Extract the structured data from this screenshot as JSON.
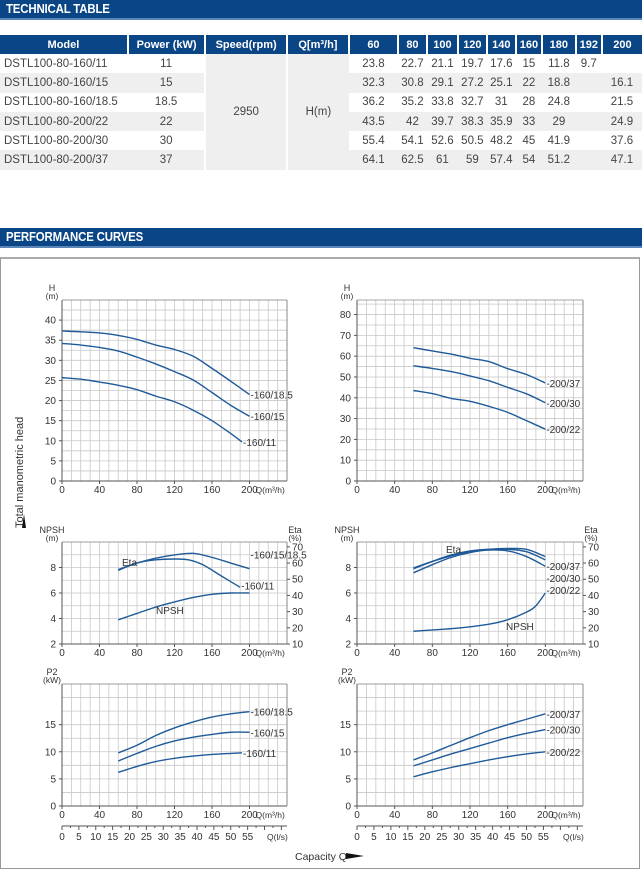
{
  "sections": {
    "technical_table": "TECHNICAL TABLE",
    "performance_curves": "PERFORMANCE CURVES"
  },
  "table": {
    "headers": [
      "Model",
      "Power (kW)",
      "Speed(rpm)",
      "Q[m³/h]"
    ],
    "flow_points": [
      "60",
      "80",
      "100",
      "120",
      "140",
      "160",
      "180",
      "192",
      "200"
    ],
    "speed": "2950",
    "head_label": "H(m)",
    "rows": [
      {
        "model": "DSTL100-80-160/11",
        "power": "11",
        "values": [
          "23.8",
          "22.7",
          "21.1",
          "19.7",
          "17.6",
          "15",
          "11.8",
          "9.7",
          ""
        ]
      },
      {
        "model": "DSTL100-80-160/15",
        "power": "15",
        "values": [
          "32.3",
          "30.8",
          "29.1",
          "27.2",
          "25.1",
          "22",
          "18.8",
          "",
          "16.1"
        ]
      },
      {
        "model": "DSTL100-80-160/18.5",
        "power": "18.5",
        "values": [
          "36.2",
          "35.2",
          "33.8",
          "32.7",
          "31",
          "28",
          "24.8",
          "",
          "21.5"
        ]
      },
      {
        "model": "DSTL100-80-200/22",
        "power": "22",
        "values": [
          "43.5",
          "42",
          "39.7",
          "38.3",
          "35.9",
          "33",
          "29",
          "",
          "24.9"
        ]
      },
      {
        "model": "DSTL100-80-200/30",
        "power": "30",
        "values": [
          "55.4",
          "54.1",
          "52.6",
          "50.5",
          "48.2",
          "45",
          "41.9",
          "",
          "37.6"
        ]
      },
      {
        "model": "DSTL100-80-200/37",
        "power": "37",
        "values": [
          "64.1",
          "62.5",
          "61",
          "59",
          "57.4",
          "54",
          "51.2",
          "",
          "47.1"
        ]
      }
    ]
  },
  "labels": {
    "y_axis_global": "Total manometric head",
    "x_axis_global": "Capacity Q"
  },
  "colors": {
    "brand": "#0a4585",
    "curve": "#1f5a99",
    "grid": "#c8c8c8"
  },
  "chart_data": [
    {
      "id": "head-160",
      "type": "line",
      "title": "",
      "ylabel_top": "H",
      "ylabel_unit": "(m)",
      "xlabel": "Q(m³/h)",
      "xlim": [
        0,
        240
      ],
      "ylim": [
        0,
        45
      ],
      "xticks": [
        0,
        40,
        80,
        120,
        160,
        200
      ],
      "yticks": [
        0,
        5,
        10,
        15,
        20,
        25,
        30,
        35,
        40
      ],
      "grid": true,
      "series": [
        {
          "name": "-160/18.5",
          "x": [
            0,
            20,
            40,
            60,
            80,
            100,
            120,
            140,
            160,
            180,
            200
          ],
          "y": [
            37.3,
            37.1,
            36.8,
            36.2,
            35.2,
            33.8,
            32.7,
            31,
            28,
            24.8,
            21.5
          ]
        },
        {
          "name": "-160/15",
          "x": [
            0,
            20,
            40,
            60,
            80,
            100,
            120,
            140,
            160,
            180,
            200
          ],
          "y": [
            34.2,
            33.8,
            33.2,
            32.3,
            30.8,
            29.1,
            27.2,
            25.1,
            22,
            18.8,
            16.1
          ]
        },
        {
          "name": "-160/11",
          "x": [
            0,
            20,
            40,
            60,
            80,
            100,
            120,
            140,
            160,
            180,
            192
          ],
          "y": [
            25.7,
            25.3,
            24.6,
            23.8,
            22.7,
            21.1,
            19.7,
            17.6,
            15,
            11.8,
            9.7
          ]
        }
      ]
    },
    {
      "id": "head-200",
      "type": "line",
      "title": "",
      "ylabel_top": "H",
      "ylabel_unit": "(m)",
      "xlabel": "Q(m³/h)",
      "xlim": [
        0,
        240
      ],
      "ylim": [
        0,
        87
      ],
      "xticks": [
        0,
        40,
        80,
        120,
        160,
        200
      ],
      "yticks": [
        0,
        10,
        20,
        30,
        40,
        50,
        60,
        70,
        80
      ],
      "grid": true,
      "series": [
        {
          "name": "-200/37",
          "x": [
            60,
            80,
            100,
            120,
            140,
            160,
            180,
            200
          ],
          "y": [
            64.1,
            62.5,
            61,
            59,
            57.4,
            54,
            51.2,
            47.1
          ]
        },
        {
          "name": "-200/30",
          "x": [
            60,
            80,
            100,
            120,
            140,
            160,
            180,
            200
          ],
          "y": [
            55.4,
            54.1,
            52.6,
            50.5,
            48.2,
            45,
            41.9,
            37.6
          ]
        },
        {
          "name": "-200/22",
          "x": [
            60,
            80,
            100,
            120,
            140,
            160,
            180,
            200
          ],
          "y": [
            43.5,
            42,
            39.7,
            38.3,
            35.9,
            33,
            29,
            24.9
          ]
        }
      ]
    },
    {
      "id": "npsh-eta-160",
      "type": "line",
      "title": "",
      "ylabel_top": "NPSH",
      "ylabel_unit": "(m)",
      "y2label_top": "Eta",
      "y2label_unit": "(%)",
      "xlabel": "Q(m³/h)",
      "xlim": [
        0,
        240
      ],
      "ylim": [
        2,
        10
      ],
      "y2lim": [
        10,
        73
      ],
      "xticks": [
        0,
        40,
        80,
        120,
        160,
        200
      ],
      "yticks": [
        2,
        4,
        6,
        8
      ],
      "y2ticks": [
        10,
        20,
        30,
        40,
        50,
        60,
        70
      ],
      "grid": true,
      "annotations": [
        "Eta",
        "NPSH"
      ],
      "series": [
        {
          "name": "-160/15/18.5",
          "axis": "y2",
          "x": [
            60,
            80,
            100,
            120,
            140,
            160,
            180,
            200
          ],
          "y": [
            56,
            60,
            63,
            65,
            66,
            63.5,
            60,
            56.5
          ]
        },
        {
          "name": "-160/11",
          "axis": "y2",
          "x": [
            60,
            80,
            100,
            120,
            135,
            150,
            170,
            190
          ],
          "y": [
            55.5,
            60,
            62,
            62.5,
            62,
            59,
            52,
            45
          ]
        },
        {
          "name": "NPSH",
          "axis": "y",
          "x": [
            60,
            80,
            100,
            120,
            140,
            160,
            180,
            200
          ],
          "y": [
            3.9,
            4.4,
            4.9,
            5.3,
            5.65,
            5.9,
            6.0,
            6.0
          ]
        }
      ]
    },
    {
      "id": "npsh-eta-200",
      "type": "line",
      "title": "",
      "ylabel_top": "NPSH",
      "ylabel_unit": "(m)",
      "y2label_top": "Eta",
      "y2label_unit": "(%)",
      "xlabel": "Q(m³/h)",
      "xlim": [
        0,
        240
      ],
      "ylim": [
        2,
        10
      ],
      "y2lim": [
        10,
        73
      ],
      "xticks": [
        0,
        40,
        80,
        120,
        160,
        200
      ],
      "yticks": [
        2,
        4,
        6,
        8
      ],
      "y2ticks": [
        10,
        20,
        30,
        40,
        50,
        60,
        70
      ],
      "grid": true,
      "annotations": [
        "Eta",
        "NPSH"
      ],
      "series": [
        {
          "name": "-200/37",
          "axis": "y2",
          "x": [
            60,
            80,
            100,
            120,
            140,
            160,
            180,
            200
          ],
          "y": [
            57,
            61,
            64.5,
            67,
            68.5,
            69,
            68.5,
            64
          ]
        },
        {
          "name": "-200/30",
          "axis": "y2",
          "x": [
            60,
            80,
            100,
            120,
            140,
            160,
            180,
            200
          ],
          "y": [
            56.5,
            61,
            65,
            67.5,
            68.5,
            68.5,
            67,
            62
          ]
        },
        {
          "name": "-200/22",
          "axis": "y2",
          "x": [
            60,
            80,
            100,
            120,
            140,
            160,
            180,
            200
          ],
          "y": [
            54,
            59,
            63.5,
            66.5,
            68,
            67.5,
            64,
            58
          ]
        },
        {
          "name": "NPSH",
          "axis": "y",
          "x": [
            60,
            80,
            100,
            120,
            140,
            160,
            180,
            190,
            200
          ],
          "y": [
            3.0,
            3.1,
            3.2,
            3.35,
            3.55,
            3.9,
            4.5,
            5.0,
            6.0
          ]
        }
      ]
    },
    {
      "id": "power-160",
      "type": "line",
      "title": "",
      "ylabel_top": "P2",
      "ylabel_unit": "(kW)",
      "xlabel": "Q(m³/h)",
      "x2label": "Q(l/s)",
      "xlim": [
        0,
        240
      ],
      "ylim": [
        0,
        22.5
      ],
      "xticks": [
        0,
        40,
        80,
        120,
        160,
        200
      ],
      "yticks": [
        0,
        5,
        10,
        15
      ],
      "x2ticks": [
        0,
        5,
        10,
        15,
        20,
        25,
        30,
        35,
        40,
        45,
        50,
        55
      ],
      "grid": true,
      "series": [
        {
          "name": "-160/18.5",
          "x": [
            60,
            80,
            100,
            120,
            140,
            160,
            180,
            200
          ],
          "y": [
            9.8,
            11.2,
            13,
            14.4,
            15.5,
            16.4,
            17.0,
            17.4
          ]
        },
        {
          "name": "-160/15",
          "x": [
            60,
            80,
            100,
            120,
            140,
            160,
            180,
            200
          ],
          "y": [
            8.3,
            9.7,
            11,
            12,
            12.7,
            13.2,
            13.6,
            13.6
          ]
        },
        {
          "name": "-160/11",
          "x": [
            60,
            80,
            100,
            120,
            140,
            160,
            180,
            192
          ],
          "y": [
            6.2,
            7.3,
            8.2,
            8.8,
            9.2,
            9.5,
            9.7,
            9.8
          ]
        }
      ]
    },
    {
      "id": "power-200",
      "type": "line",
      "title": "",
      "ylabel_top": "P2",
      "ylabel_unit": "(kW)",
      "xlabel": "Q(m³/h)",
      "x2label": "Q(l/s)",
      "xlim": [
        0,
        240
      ],
      "ylim": [
        0,
        22.5
      ],
      "xticks": [
        0,
        40,
        80,
        120,
        160,
        200
      ],
      "yticks": [
        0,
        5,
        10,
        15
      ],
      "x2ticks": [
        0,
        5,
        10,
        15,
        20,
        25,
        30,
        35,
        40,
        45,
        50,
        55
      ],
      "grid": true,
      "series": [
        {
          "name": "-200/37",
          "x": [
            60,
            80,
            100,
            120,
            140,
            160,
            180,
            200
          ],
          "y": [
            8.5,
            9.8,
            11.2,
            12.6,
            13.9,
            15.0,
            16.0,
            17.0
          ]
        },
        {
          "name": "-200/30",
          "x": [
            60,
            80,
            100,
            120,
            140,
            160,
            180,
            200
          ],
          "y": [
            7.4,
            8.5,
            9.6,
            10.6,
            11.6,
            12.6,
            13.4,
            14.1
          ]
        },
        {
          "name": "-200/22",
          "x": [
            60,
            80,
            100,
            120,
            140,
            160,
            180,
            200
          ],
          "y": [
            5.4,
            6.3,
            7.1,
            7.8,
            8.5,
            9.1,
            9.6,
            10.0
          ]
        }
      ]
    }
  ]
}
